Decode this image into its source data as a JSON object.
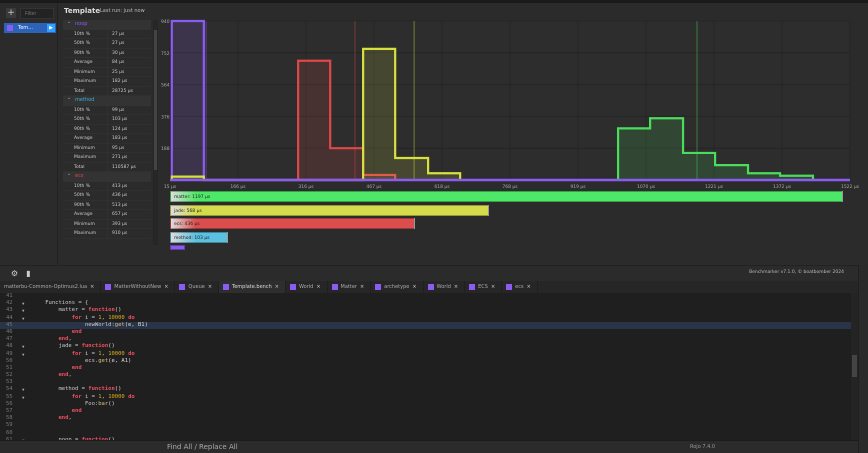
{
  "sidebar": {
    "add_label": "+",
    "filter_placeholder": "Filter",
    "items": [
      {
        "label": "Tem..."
      }
    ]
  },
  "header": {
    "title": "Template",
    "last_run": "Last run: just now"
  },
  "stats": [
    {
      "name": "noop",
      "color": "#8a5cf0",
      "rows": [
        [
          "10th %",
          "27 µs"
        ],
        [
          "50th %",
          "27 µs"
        ],
        [
          "90th %",
          "30 µs"
        ],
        [
          "Average",
          "84 µs"
        ],
        [
          "Minimum",
          "25 µs"
        ],
        [
          "Maximum",
          "182 µs"
        ],
        [
          "Total",
          "28725 µs"
        ]
      ]
    },
    {
      "name": "method",
      "color": "#3ab0e0",
      "rows": [
        [
          "10th %",
          "99 µs"
        ],
        [
          "50th %",
          "103 µs"
        ],
        [
          "90th %",
          "124 µs"
        ],
        [
          "Average",
          "183 µs"
        ],
        [
          "Minimum",
          "95 µs"
        ],
        [
          "Maximum",
          "271 µs"
        ],
        [
          "Total",
          "110587 µs"
        ]
      ]
    },
    {
      "name": "ecs",
      "color": "#e04848",
      "rows": [
        [
          "10th %",
          "413 µs"
        ],
        [
          "50th %",
          "436 µs"
        ],
        [
          "90th %",
          "513 µs"
        ],
        [
          "Average",
          "657 µs"
        ],
        [
          "Minimum",
          "393 µs"
        ],
        [
          "Maximum",
          "910 µs"
        ]
      ]
    }
  ],
  "chart_data": {
    "type": "histogram",
    "xlim": [
      15,
      1522
    ],
    "ylim": [
      0,
      940
    ],
    "x_ticks": [
      "15 µs",
      "166 µs",
      "316 µs",
      "467 µs",
      "618 µs",
      "768 µs",
      "919 µs",
      "1070 µs",
      "1221 µs",
      "1372 µs",
      "1522 µs"
    ],
    "y_ticks": [
      "940",
      "752",
      "564",
      "376",
      "188"
    ],
    "grid": true,
    "series": [
      {
        "name": "noop",
        "color": "#8a5cf0",
        "bins": [
          [
            19,
            90,
            940
          ]
        ],
        "marker": 95
      },
      {
        "name": "ecs",
        "color": "#e04848",
        "bins": [
          [
            299,
            370,
            705
          ],
          [
            370,
            443,
            188
          ],
          [
            443,
            514,
            30
          ]
        ],
        "marker": 425
      },
      {
        "name": "jade",
        "color": "#d8e040",
        "bins": [
          [
            19,
            90,
            20
          ],
          [
            443,
            514,
            775
          ],
          [
            514,
            587,
            130
          ],
          [
            587,
            658,
            40
          ]
        ],
        "marker": 556
      },
      {
        "name": "matter",
        "color": "#4cdc5c",
        "bins": [
          [
            1008,
            1079,
            305
          ],
          [
            1079,
            1152,
            365
          ],
          [
            1152,
            1223,
            160
          ],
          [
            1223,
            1296,
            88
          ],
          [
            1296,
            1367,
            40
          ],
          [
            1367,
            1440,
            25
          ]
        ],
        "marker": 1183
      }
    ],
    "summary_bars": [
      {
        "label": "matter: 1197 µs",
        "value": 1197,
        "color": "#4ee868"
      },
      {
        "label": "jade: 568 µs",
        "value": 568,
        "color": "#d4dc4c"
      },
      {
        "label": "ecs: 436 µs",
        "value": 436,
        "color": "#dc4e4e"
      },
      {
        "label": "method: 103 µs",
        "value": 103,
        "color": "#5cc0e0"
      },
      {
        "label": "",
        "value": 27,
        "color": "#8a5cf0"
      }
    ]
  },
  "toolbar": {
    "credit": "Benchmarker v7.1.0, © boatbomber 2024"
  },
  "tabs": [
    {
      "label": "matterbu-Common-Optimus2.lua",
      "icon": false
    },
    {
      "label": "MatterWithoutNew",
      "icon": true
    },
    {
      "label": "Queue",
      "icon": true
    },
    {
      "label": "Template.bench",
      "icon": true,
      "active": true
    },
    {
      "label": "World",
      "icon": true
    },
    {
      "label": "Matter",
      "icon": true
    },
    {
      "label": "archetype",
      "icon": true
    },
    {
      "label": "World",
      "icon": true
    },
    {
      "label": "ECS",
      "icon": true
    },
    {
      "label": "ecs",
      "icon": true
    }
  ],
  "editor": {
    "current_line": 45,
    "lines": [
      {
        "n": 41,
        "t": []
      },
      {
        "n": 42,
        "f": true,
        "t": [
          [
            "    Functions = {",
            ""
          ]
        ]
      },
      {
        "n": 43,
        "f": true,
        "t": [
          [
            "        matter = ",
            ""
          ],
          [
            "function",
            "kw"
          ],
          [
            "()",
            "br"
          ]
        ]
      },
      {
        "n": 44,
        "f": true,
        "t": [
          [
            "            ",
            ""
          ],
          [
            "for",
            "kw"
          ],
          [
            " i = ",
            ""
          ],
          [
            "1",
            "nm"
          ],
          [
            ", ",
            ""
          ],
          [
            "10000",
            "nm"
          ],
          [
            " ",
            ""
          ],
          [
            "do",
            "kw"
          ]
        ]
      },
      {
        "n": 45,
        "t": [
          [
            "                newWorld:",
            ""
          ],
          [
            "get",
            "fn"
          ],
          [
            "(e, B1)",
            "br"
          ]
        ]
      },
      {
        "n": 46,
        "t": [
          [
            "            ",
            ""
          ],
          [
            "end",
            "kw"
          ]
        ]
      },
      {
        "n": 47,
        "t": [
          [
            "        ",
            ""
          ],
          [
            "end",
            "kw"
          ],
          [
            ",",
            ""
          ]
        ]
      },
      {
        "n": 48,
        "f": true,
        "t": [
          [
            "        jade = ",
            ""
          ],
          [
            "function",
            "kw"
          ],
          [
            "()",
            "br"
          ]
        ]
      },
      {
        "n": 49,
        "f": true,
        "t": [
          [
            "            ",
            ""
          ],
          [
            "for",
            "kw"
          ],
          [
            " i = ",
            ""
          ],
          [
            "1",
            "nm"
          ],
          [
            ", ",
            ""
          ],
          [
            "10000",
            "nm"
          ],
          [
            " ",
            ""
          ],
          [
            "do",
            "kw"
          ]
        ]
      },
      {
        "n": 50,
        "t": [
          [
            "                ecs.",
            ""
          ],
          [
            "get",
            "fn"
          ],
          [
            "(e, A1)",
            "br"
          ]
        ]
      },
      {
        "n": 51,
        "t": [
          [
            "            ",
            ""
          ],
          [
            "end",
            "kw"
          ]
        ]
      },
      {
        "n": 52,
        "t": [
          [
            "        ",
            ""
          ],
          [
            "end",
            "kw"
          ],
          [
            ",",
            ""
          ]
        ]
      },
      {
        "n": 53,
        "t": []
      },
      {
        "n": 54,
        "f": true,
        "t": [
          [
            "        method = ",
            ""
          ],
          [
            "function",
            "kw"
          ],
          [
            "()",
            "br"
          ]
        ]
      },
      {
        "n": 55,
        "f": true,
        "t": [
          [
            "            ",
            ""
          ],
          [
            "for",
            "kw"
          ],
          [
            " i = ",
            ""
          ],
          [
            "1",
            "nm"
          ],
          [
            ", ",
            ""
          ],
          [
            "10000",
            "nm"
          ],
          [
            " ",
            ""
          ],
          [
            "do",
            "kw"
          ]
        ]
      },
      {
        "n": 56,
        "t": [
          [
            "                Foo:",
            ""
          ],
          [
            "bar",
            "fn"
          ],
          [
            "()",
            "br"
          ]
        ]
      },
      {
        "n": 57,
        "t": [
          [
            "            ",
            ""
          ],
          [
            "end",
            "kw"
          ]
        ]
      },
      {
        "n": 58,
        "t": [
          [
            "        ",
            ""
          ],
          [
            "end",
            "kw"
          ],
          [
            ",",
            ""
          ]
        ]
      },
      {
        "n": 59,
        "t": []
      },
      {
        "n": 60,
        "t": []
      },
      {
        "n": 61,
        "f": true,
        "t": [
          [
            "        noop = ",
            ""
          ],
          [
            "function",
            "kw"
          ],
          [
            "()",
            "br"
          ]
        ]
      }
    ]
  },
  "bottom": {
    "find": "Find All / Replace All",
    "rojo": "Rojo 7.4.0"
  }
}
